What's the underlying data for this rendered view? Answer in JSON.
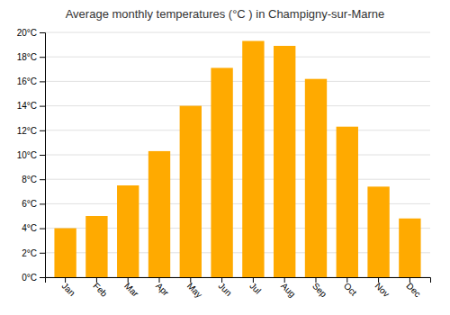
{
  "chart_data": {
    "type": "bar",
    "title": "Average monthly temperatures (°C ) in Champigny-sur-Marne",
    "categories": [
      "Jan",
      "Feb",
      "Mar",
      "Apr",
      "May",
      "Jun",
      "Jul",
      "Aug",
      "Sep",
      "Oct",
      "Nov",
      "Dec"
    ],
    "values": [
      4.0,
      5.0,
      7.5,
      10.3,
      14.0,
      17.1,
      19.3,
      18.9,
      16.2,
      12.3,
      7.4,
      4.8
    ],
    "color": "#FFAA00",
    "ylim": [
      0,
      20
    ],
    "yticks": [
      {
        "value": 0,
        "label": "0°C"
      },
      {
        "value": 2,
        "label": "2°C"
      },
      {
        "value": 4,
        "label": "4°C"
      },
      {
        "value": 6,
        "label": "6°C"
      },
      {
        "value": 8,
        "label": "8°C"
      },
      {
        "value": 10,
        "label": "10°C"
      },
      {
        "value": 12,
        "label": "12°C"
      },
      {
        "value": 14,
        "label": "14°C"
      },
      {
        "value": 16,
        "label": "16°C"
      },
      {
        "value": 18,
        "label": "18°C"
      },
      {
        "value": 20,
        "label": "20°C"
      }
    ],
    "grid": true
  }
}
